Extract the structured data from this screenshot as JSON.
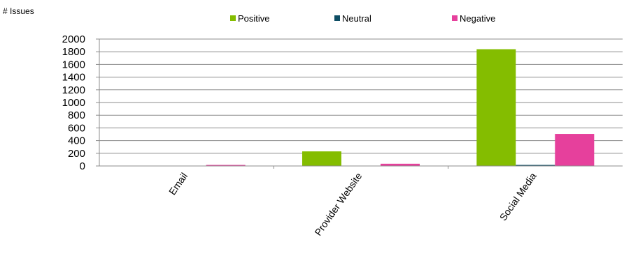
{
  "chart_data": {
    "type": "bar",
    "ylabel": "# Issues",
    "categories": [
      "Email",
      "Provider Website",
      "Social Media"
    ],
    "series": [
      {
        "name": "Positive",
        "color": "#84BD00",
        "values": [
          0,
          230,
          1840
        ]
      },
      {
        "name": "Neutral",
        "color": "#0E4D64",
        "values": [
          0,
          0,
          15
        ]
      },
      {
        "name": "Negative",
        "color": "#E6409C",
        "values": [
          5,
          35,
          505
        ]
      }
    ],
    "ylim": [
      0,
      2000
    ],
    "yticks": [
      0,
      200,
      400,
      600,
      800,
      1000,
      1200,
      1400,
      1600,
      1800,
      2000
    ],
    "grid": true,
    "legend": "top"
  }
}
